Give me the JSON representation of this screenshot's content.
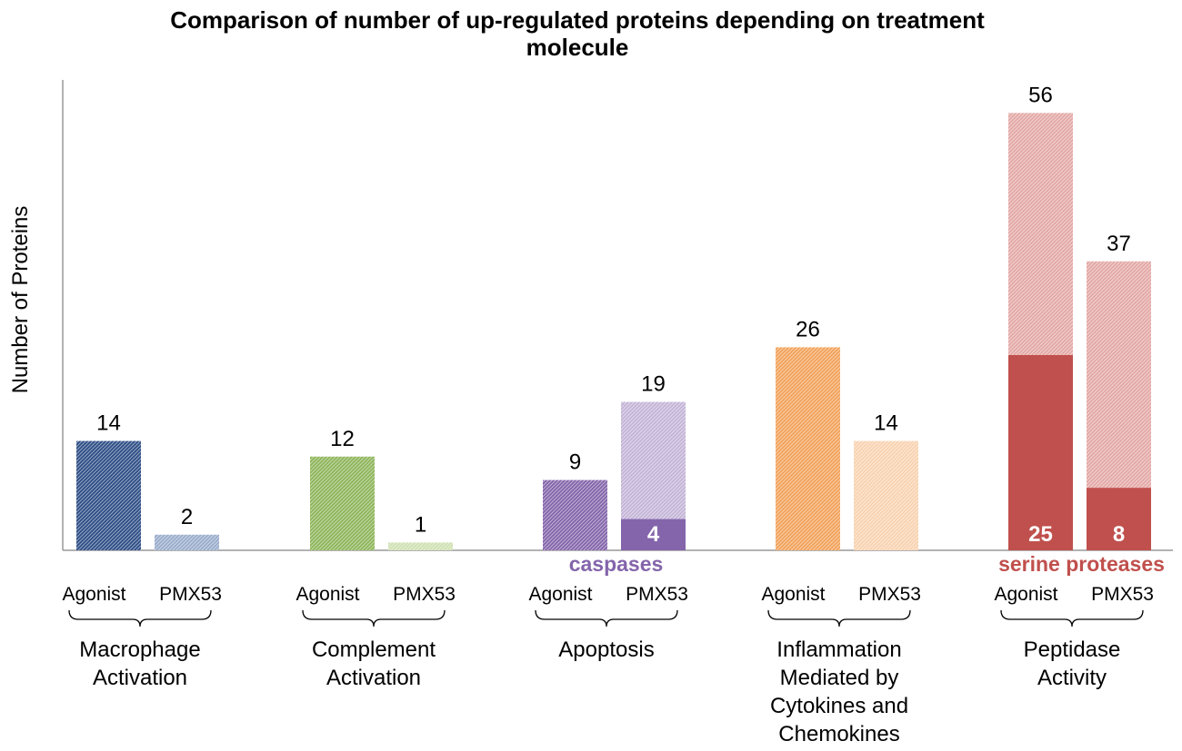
{
  "chart_data": {
    "type": "bar",
    "title_lines": [
      "Comparison of number of up-regulated proteins depending on treatment",
      "molecule"
    ],
    "ylabel": "Number of Proteins",
    "xlabel": "",
    "ylim": [
      0,
      60
    ],
    "series_names": [
      "Agonist",
      "PMX53"
    ],
    "categories": [
      {
        "name": "Macrophage Activation",
        "label_lines": [
          "Macrophage",
          "Activation"
        ],
        "color": "#2f4f87",
        "light_color": "#9aaccc",
        "values": [
          14,
          2
        ],
        "subsets": [
          null,
          null
        ]
      },
      {
        "name": "Complement Activation",
        "label_lines": [
          "Complement",
          "Activation"
        ],
        "color": "#8db55a",
        "light_color": "#cfe0b2",
        "values": [
          12,
          1
        ],
        "subsets": [
          null,
          null
        ]
      },
      {
        "name": "Apoptosis",
        "label_lines": [
          "Apoptosis"
        ],
        "color": "#8465ab",
        "light_color": "#c3b4d8",
        "values": [
          9,
          19
        ],
        "subsets": [
          null,
          4
        ]
      },
      {
        "name": "Inflammation Mediated by Cytokines and Chemokines",
        "label_lines": [
          "Inflammation",
          "Mediated by",
          "Cytokines and",
          "Chemokines"
        ],
        "color": "#f2a25a",
        "light_color": "#f8d2b0",
        "values": [
          26,
          14
        ],
        "subsets": [
          null,
          null
        ]
      },
      {
        "name": "Peptidase Activity",
        "label_lines": [
          "Peptidase",
          "Activity"
        ],
        "color": "#c0504d",
        "light_color": "#e3a8a6",
        "values": [
          56,
          37
        ],
        "subsets": [
          25,
          8
        ]
      }
    ],
    "annotations": [
      {
        "category_index": 2,
        "text": "caspases",
        "color": "#8465ab"
      },
      {
        "category_index": 4,
        "text": "serine proteases",
        "color": "#c0504d"
      }
    ]
  }
}
